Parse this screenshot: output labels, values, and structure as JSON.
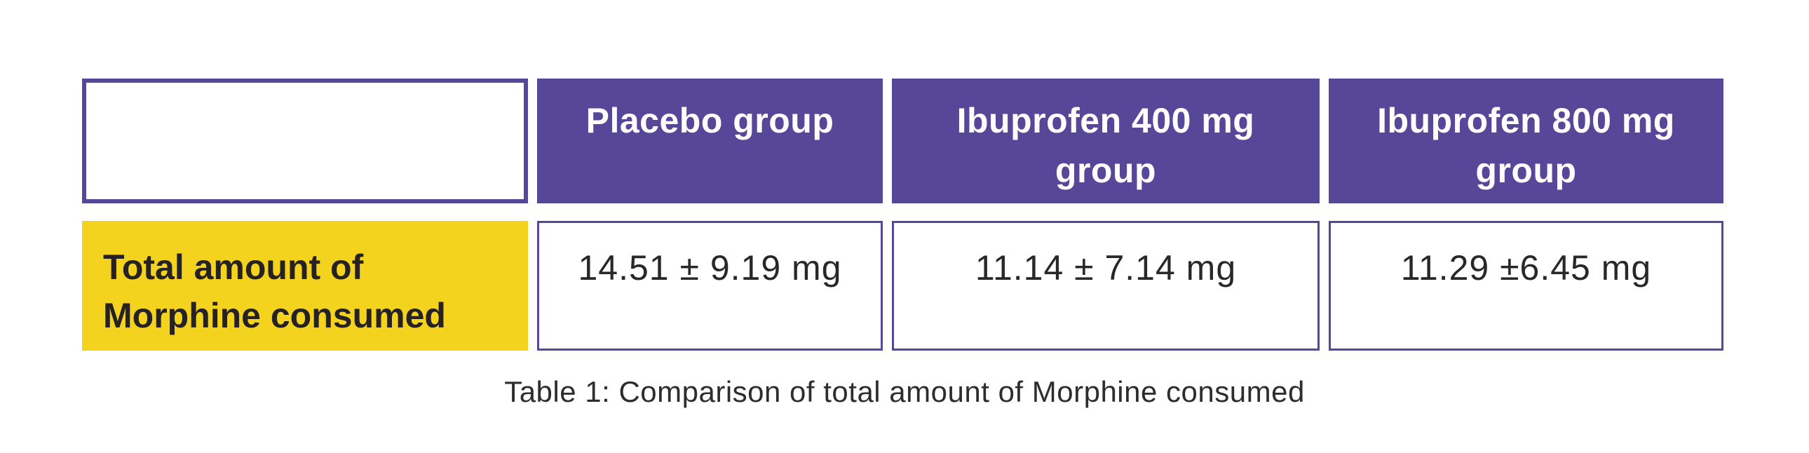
{
  "colors": {
    "purple": "#564798",
    "yellow": "#F4D31F",
    "dark_text": "#262123",
    "value_text": "#2b2627",
    "caption_text": "#2f2c2d",
    "background": "#ffffff"
  },
  "table": {
    "columns": [
      {
        "label": ""
      },
      {
        "label": "Placebo group"
      },
      {
        "label": "Ibuprofen 400 mg group"
      },
      {
        "label": "Ibuprofen 800 mg group"
      }
    ],
    "rows": [
      {
        "header": "Total amount of Morphine consumed",
        "values": [
          "14.51 ± 9.19 mg",
          "11.14 ± 7.14 mg",
          "11.29 ±6.45 mg"
        ]
      }
    ],
    "caption": "Table 1: Comparison of total amount of Morphine consumed"
  },
  "chart_data": {
    "type": "table",
    "title": "Table 1: Comparison of total amount of Morphine consumed",
    "columns": [
      "",
      "Placebo group",
      "Ibuprofen 400 mg group",
      "Ibuprofen 800 mg group"
    ],
    "rows": [
      [
        "Total amount of Morphine consumed",
        "14.51 ± 9.19 mg",
        "11.14 ± 7.14 mg",
        "11.29 ±6.45 mg"
      ]
    ],
    "values_numeric": {
      "unit": "mg",
      "measure": "Total amount of Morphine consumed",
      "series": [
        {
          "group": "Placebo group",
          "mean": 14.51,
          "sd": 9.19
        },
        {
          "group": "Ibuprofen 400 mg group",
          "mean": 11.14,
          "sd": 7.14
        },
        {
          "group": "Ibuprofen 800 mg group",
          "mean": 11.29,
          "sd": 6.45
        }
      ]
    },
    "layout_hints": {
      "header_style": "purple solid fill, white bold text",
      "row_header_style": "yellow solid fill, dark bold text",
      "value_cell_style": "white fill, thin purple border",
      "caption_position": "bottom-center"
    }
  }
}
